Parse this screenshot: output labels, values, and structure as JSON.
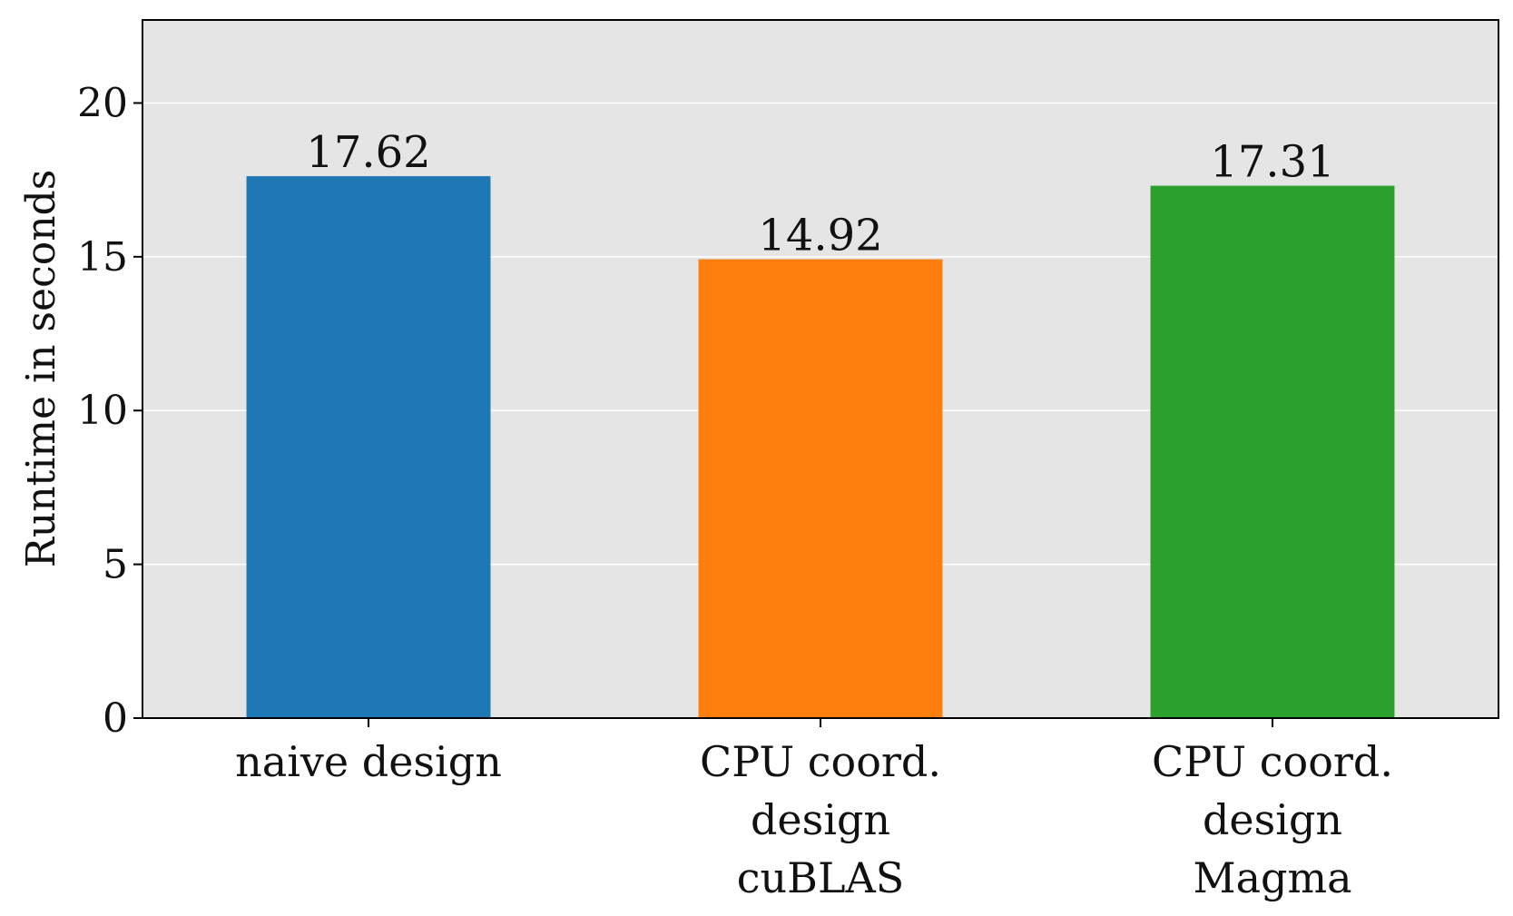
{
  "chart_data": {
    "type": "bar",
    "title": "",
    "xlabel": "",
    "ylabel": "Runtime in seconds",
    "categories": [
      [
        "naive design"
      ],
      [
        "CPU coord.",
        "design",
        "cuBLAS"
      ],
      [
        "CPU coord.",
        "design",
        "Magma"
      ]
    ],
    "values": [
      17.62,
      14.92,
      17.31
    ],
    "value_labels": [
      "17.62",
      "14.92",
      "17.31"
    ],
    "colors": [
      "#1f77b4",
      "#ff7f0e",
      "#2ca02c"
    ],
    "ylim": [
      0,
      22.7
    ],
    "yticks": [
      0,
      5,
      10,
      15,
      20
    ],
    "grid": "horizontal",
    "legend": "none",
    "plot_background": "#e5e5e5",
    "gridline_color": "#ffffff"
  }
}
